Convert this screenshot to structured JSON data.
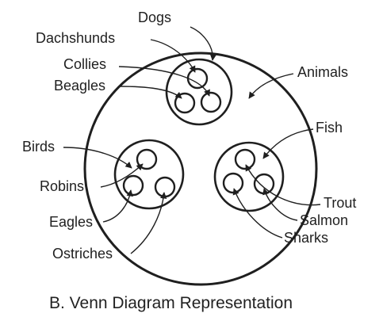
{
  "caption": "B. Venn Diagram Representation",
  "sets": {
    "animals": "Animals",
    "dogs": "Dogs",
    "birds": "Birds",
    "fish": "Fish"
  },
  "members": {
    "dachshunds": "Dachshunds",
    "collies": "Collies",
    "beagles": "Beagles",
    "robins": "Robins",
    "eagles": "Eagles",
    "ostriches": "Ostriches",
    "trout": "Trout",
    "salmon": "Salmon",
    "sharks": "Sharks"
  }
}
